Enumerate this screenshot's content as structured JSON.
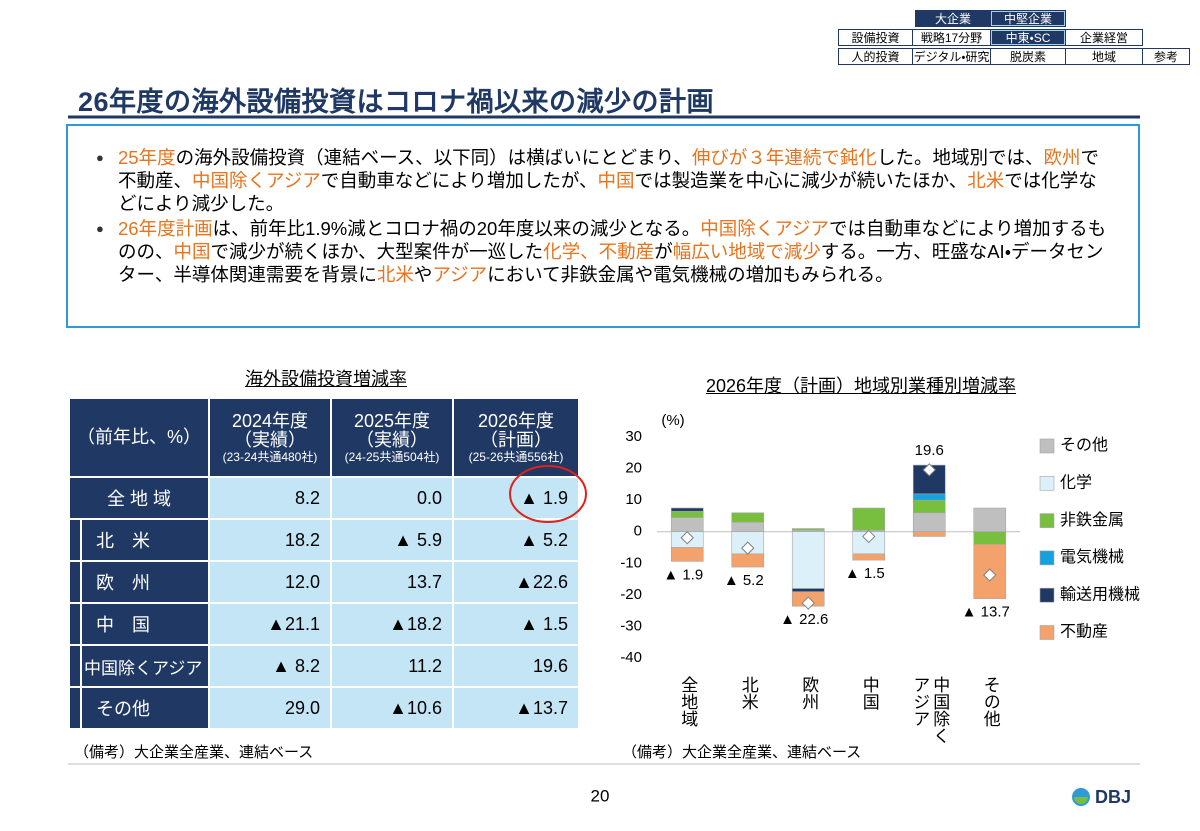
{
  "nav": {
    "rows": [
      [
        "大企業",
        "中堅企業"
      ],
      [
        "設備投資",
        "戦略17分野",
        "中東・SC",
        "企業経営"
      ],
      [
        "人的投資",
        "デジタル・研究",
        "脱炭素",
        "地域",
        "参考"
      ]
    ]
  },
  "title": "26年度の海外設備投資はコロナ禍以来の減少の計画",
  "bullets": [
    [
      {
        "text": "25年度",
        "highlight": true
      },
      {
        "text": "の海外設備投資（連結ベース、以下同）は横ばいにとどまり、",
        "highlight": false
      },
      {
        "text": "伸びが３年連続で鈍化",
        "highlight": true
      },
      {
        "text": "した。地域別では、",
        "highlight": false
      },
      {
        "text": "欧州",
        "highlight": true
      },
      {
        "text": "で不動産、",
        "highlight": false
      },
      {
        "text": "中国除くアジア",
        "highlight": true
      },
      {
        "text": "で自動車などにより増加したが、",
        "highlight": false
      },
      {
        "text": "中国",
        "highlight": true
      },
      {
        "text": "では製造業を中心に減少が続いたほか、",
        "highlight": false
      },
      {
        "text": "北米",
        "highlight": true
      },
      {
        "text": "では化学などにより減少した。",
        "highlight": false
      }
    ],
    [
      {
        "text": "26年度計画",
        "highlight": true
      },
      {
        "text": "は、前年比1.9%減とコロナ禍の20年度以来の減少となる。",
        "highlight": false
      },
      {
        "text": "中国除くアジア",
        "highlight": true
      },
      {
        "text": "では自動車などにより増加するものの、",
        "highlight": false
      },
      {
        "text": "中国",
        "highlight": true
      },
      {
        "text": "で減少が続くほか、大型案件が一巡した",
        "highlight": false
      },
      {
        "text": "化学、不動産",
        "highlight": true
      },
      {
        "text": "が",
        "highlight": false
      },
      {
        "text": "幅広い地域で減少",
        "highlight": true
      },
      {
        "text": "する。一方、旺盛なAI・データセンター、半導体関連需要を背景に",
        "highlight": false
      },
      {
        "text": "北米",
        "highlight": true
      },
      {
        "text": "や",
        "highlight": false
      },
      {
        "text": "アジア",
        "highlight": true
      },
      {
        "text": "において非鉄金属や電気機械の増加もみられる。",
        "highlight": false
      }
    ]
  ],
  "table": {
    "title": "海外設備投資増減率",
    "corner": "（前年比、%）",
    "columns": [
      {
        "year": "2024年度",
        "kind": "（実績）",
        "note": "(23-24共通480社)"
      },
      {
        "year": "2025年度",
        "kind": "（実績）",
        "note": "(24-25共通504社)"
      },
      {
        "year": "2026年度",
        "kind": "（計画）",
        "note": "(25-26共通556社)"
      }
    ],
    "rows": [
      {
        "label": "全 地 域",
        "values": [
          "8.2",
          "0.0",
          "▲ 1.9"
        ]
      },
      {
        "label": "北　米",
        "values": [
          "18.2",
          "▲ 5.9",
          "▲ 5.2"
        ]
      },
      {
        "label": "欧　州",
        "values": [
          "12.0",
          "13.7",
          "▲22.6"
        ]
      },
      {
        "label": "中　国",
        "values": [
          "▲21.1",
          "▲18.2",
          "▲ 1.5"
        ]
      },
      {
        "label": "中国除くアジア",
        "values": [
          "▲ 8.2",
          "11.2",
          "19.6"
        ]
      },
      {
        "label": "その他",
        "values": [
          "29.0",
          "▲10.6",
          "▲13.7"
        ]
      }
    ],
    "note": "（備考）大企業全産業、連結ベース"
  },
  "chart_data": {
    "type": "stacked_bar",
    "title": "2026年度（計画）地域別業種別増減率",
    "y_label": "(%)",
    "categories": [
      "全地域",
      "北米",
      "欧州",
      "中国",
      "中国除くアジア",
      "その他"
    ],
    "series": [
      {
        "name": "その他",
        "color": "#bfbfbf",
        "values": [
          4.5,
          3,
          0.5,
          0.5,
          6,
          7.5
        ]
      },
      {
        "name": "化学",
        "color": "#dcf0fa",
        "values": [
          -5,
          -7,
          -18,
          -7,
          0,
          0
        ]
      },
      {
        "name": "非鉄金属",
        "color": "#78bf3f",
        "values": [
          2,
          3,
          0.5,
          7,
          4,
          -4
        ]
      },
      {
        "name": "電気機械",
        "color": "#16a0dc",
        "values": [
          0,
          0,
          0,
          0,
          2,
          0
        ]
      },
      {
        "name": "輸送用機械",
        "color": "#1f3864",
        "values": [
          1,
          0,
          -1,
          0,
          9.1,
          0
        ]
      },
      {
        "name": "不動産",
        "color": "#f4a26b",
        "values": [
          -4.4,
          -4.2,
          -4.6,
          -2,
          -1.5,
          -17.2
        ]
      }
    ],
    "totals": {
      "values": [
        -1.9,
        -5.2,
        -22.6,
        -1.5,
        19.6,
        -13.7
      ],
      "value_labels": [
        "▲ 1.9",
        "▲ 5.2",
        "▲ 22.6",
        "▲ 1.5",
        "19.6",
        "▲ 13.7"
      ]
    },
    "ylim": [
      -40,
      30
    ],
    "yticks": [
      -40,
      -30,
      -20,
      -10,
      0,
      10,
      20,
      30
    ],
    "note": "（備考）大企業全産業、連結ベース"
  },
  "page_number": "20",
  "logo": "DBJ"
}
